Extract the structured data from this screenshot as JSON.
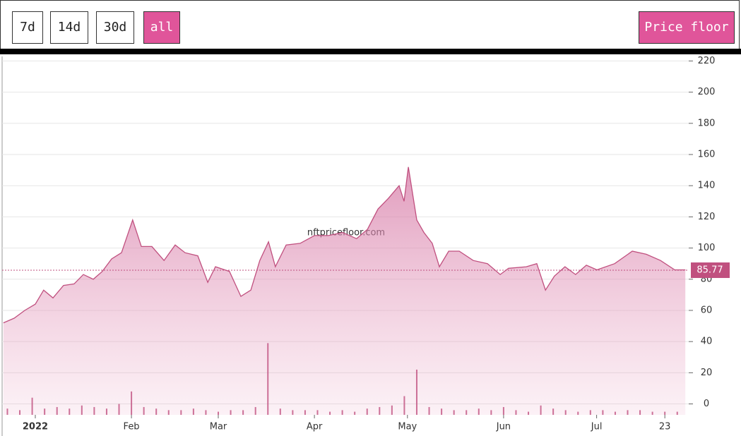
{
  "toolbar": {
    "buttons": [
      "7d",
      "14d",
      "30d",
      "all"
    ],
    "active_button": 3,
    "price_floor_button": "Price floor"
  },
  "chart_data": {
    "type": "area",
    "watermark": "nftpricefloor.com",
    "x": [
      -10.3,
      -6.8,
      -3.4,
      0,
      2.7,
      5.7,
      9.1,
      12.5,
      15.5,
      18.7,
      21.6,
      24.6,
      27.8,
      31.4,
      34.2,
      37.6,
      41.5,
      45.1,
      48.3,
      52.4,
      55.6,
      58.1,
      62.6,
      66.3,
      69.5,
      72.4,
      75.2,
      77.4,
      80.9,
      85.4,
      90,
      94.5,
      99.1,
      103.6,
      107.1,
      110.5,
      113.9,
      117.3,
      118.9,
      120.3,
      123,
      125.3,
      128,
      130.3,
      133.3,
      136.7,
      141.2,
      145.8,
      149.9,
      152.6,
      158.3,
      161.7,
      164.5,
      167.4,
      170.8,
      174.2,
      177.7,
      181.1,
      186.8,
      192.5,
      197,
      201.6,
      206.2,
      209.6
    ],
    "series": [
      {
        "name": "Price floor",
        "color": "#c0507f",
        "values": [
          52,
          55,
          60,
          64,
          73,
          68,
          76,
          77,
          83,
          80,
          85,
          93,
          97,
          118,
          101,
          101,
          92,
          102,
          97,
          95,
          78,
          88,
          85,
          69,
          73,
          92,
          104,
          88,
          102,
          103,
          108,
          108,
          110,
          106,
          112,
          125,
          132,
          140,
          130,
          152,
          118,
          110,
          103,
          88,
          98,
          98,
          92,
          90,
          83,
          87,
          88,
          90,
          73,
          82,
          88,
          83,
          89,
          86,
          90,
          98,
          96,
          92,
          86,
          86
        ]
      }
    ],
    "volume": {
      "color": "#c0507f",
      "x": [
        -9,
        -5,
        -1,
        3,
        7,
        11,
        15,
        19,
        23,
        27,
        31,
        35,
        39,
        43,
        47,
        51,
        55,
        59,
        63,
        67,
        71,
        75,
        79,
        83,
        87,
        91,
        95,
        99,
        103,
        107,
        111,
        115,
        119,
        123,
        127,
        131,
        135,
        139,
        143,
        147,
        151,
        155,
        159,
        163,
        167,
        171,
        175,
        179,
        183,
        187,
        191,
        195,
        199,
        203,
        207
      ],
      "values": [
        -3,
        -4,
        4,
        -3,
        -2,
        -3,
        -1,
        -2,
        -3,
        0,
        8,
        -2,
        -3,
        -4,
        -4,
        -3,
        -4,
        -5,
        -4,
        -4,
        -2,
        39,
        -3,
        -4,
        -4,
        -4,
        -5,
        -4,
        -5,
        -3,
        -2,
        -1,
        5,
        22,
        -2,
        -3,
        -4,
        -4,
        -3,
        -4,
        -2,
        -4,
        -5,
        -1,
        -3,
        -4,
        -5,
        -4,
        -4,
        -5,
        -4,
        -4,
        -5,
        -5,
        -5
      ]
    },
    "last_price": 85.77,
    "xlim": [
      -10.7,
      210.7
    ],
    "xticks": [
      {
        "value": 0,
        "label": "2022"
      },
      {
        "value": 31,
        "label": "Feb"
      },
      {
        "value": 59,
        "label": "Mar"
      },
      {
        "value": 90,
        "label": "Apr"
      },
      {
        "value": 120,
        "label": "May"
      },
      {
        "value": 151,
        "label": "Jun"
      },
      {
        "value": 181,
        "label": "Jul"
      },
      {
        "value": 203,
        "label": "23"
      }
    ],
    "ylim": [
      -7,
      222
    ],
    "yticks": [
      0,
      20,
      40,
      60,
      80,
      100,
      120,
      140,
      160,
      180,
      200,
      220
    ],
    "grid": true
  }
}
